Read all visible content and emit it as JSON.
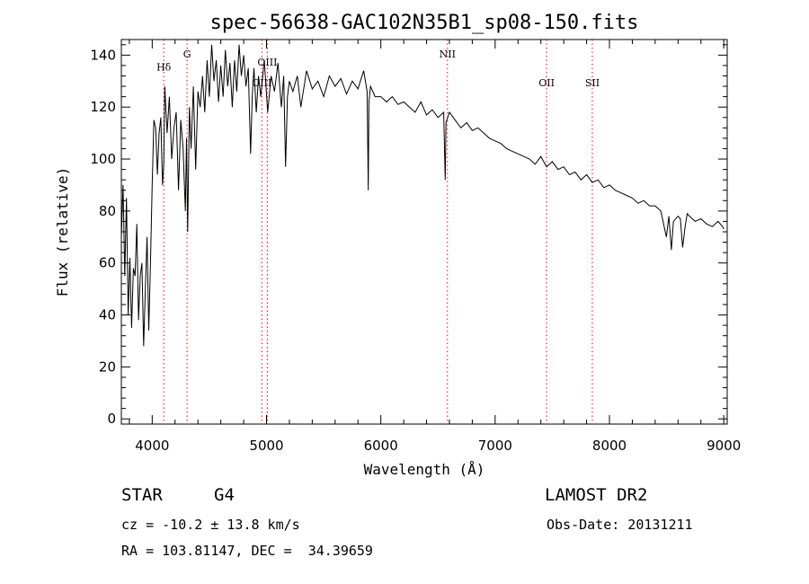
{
  "chart_data": {
    "type": "line",
    "title": "spec-56638-GAC102N35B1_sp08-150.fits",
    "xlabel": "Wavelength (Å)",
    "ylabel": "Flux (relative)",
    "xlim": [
      3730,
      9030
    ],
    "ylim": [
      -2,
      146
    ],
    "x_ticks": [
      4000,
      5000,
      6000,
      7000,
      8000,
      9000
    ],
    "y_ticks": [
      0,
      20,
      40,
      60,
      80,
      100,
      120,
      140
    ],
    "grid": false,
    "series": [
      {
        "color": "#000000",
        "x": [
          3730,
          3745,
          3760,
          3775,
          3790,
          3805,
          3820,
          3835,
          3850,
          3865,
          3880,
          3895,
          3910,
          3925,
          3940,
          3955,
          3970,
          3985,
          4000,
          4015,
          4030,
          4045,
          4060,
          4075,
          4090,
          4101,
          4110,
          4130,
          4150,
          4170,
          4190,
          4210,
          4230,
          4250,
          4270,
          4290,
          4300,
          4310,
          4325,
          4340,
          4360,
          4380,
          4400,
          4420,
          4440,
          4460,
          4480,
          4500,
          4520,
          4540,
          4560,
          4580,
          4600,
          4620,
          4640,
          4660,
          4680,
          4700,
          4720,
          4740,
          4760,
          4780,
          4800,
          4820,
          4840,
          4861,
          4875,
          4890,
          4910,
          4930,
          4950,
          4980,
          5010,
          5040,
          5070,
          5100,
          5130,
          5150,
          5167,
          5183,
          5200,
          5230,
          5270,
          5300,
          5350,
          5400,
          5450,
          5500,
          5550,
          5600,
          5650,
          5700,
          5750,
          5800,
          5850,
          5880,
          5890,
          5896,
          5910,
          5950,
          6000,
          6050,
          6100,
          6150,
          6200,
          6250,
          6300,
          6350,
          6400,
          6450,
          6500,
          6550,
          6563,
          6570,
          6600,
          6650,
          6700,
          6750,
          6800,
          6850,
          6900,
          6950,
          7000,
          7050,
          7100,
          7150,
          7200,
          7250,
          7300,
          7350,
          7400,
          7450,
          7500,
          7550,
          7600,
          7650,
          7700,
          7750,
          7800,
          7850,
          7900,
          7950,
          8000,
          8050,
          8100,
          8150,
          8200,
          8250,
          8300,
          8350,
          8400,
          8450,
          8498,
          8520,
          8542,
          8560,
          8600,
          8620,
          8640,
          8662,
          8680,
          8700,
          8750,
          8800,
          8850,
          8900,
          8950,
          8990,
          9000
        ],
        "y": [
          70,
          90,
          55,
          85,
          40,
          62,
          35,
          58,
          55,
          75,
          38,
          55,
          60,
          28,
          50,
          70,
          34,
          60,
          90,
          115,
          112,
          94,
          110,
          116,
          90,
          98,
          128,
          110,
          124,
          100,
          112,
          118,
          88,
          115,
          104,
          80,
          108,
          72,
          120,
          104,
          128,
          96,
          126,
          120,
          132,
          118,
          138,
          124,
          144,
          130,
          138,
          122,
          136,
          124,
          142,
          128,
          137,
          120,
          138,
          126,
          144,
          132,
          140,
          128,
          135,
          102,
          124,
          135,
          118,
          132,
          124,
          138,
          118,
          132,
          126,
          137,
          120,
          132,
          97,
          124,
          130,
          126,
          132,
          120,
          134,
          127,
          130,
          124,
          132,
          128,
          131,
          125,
          130,
          127,
          134,
          126,
          88,
          122,
          128,
          124,
          124,
          122,
          124,
          121,
          122,
          120,
          118,
          122,
          117,
          119,
          116,
          118,
          92,
          114,
          118,
          115,
          112,
          114,
          111,
          112,
          110,
          108,
          107,
          106,
          104,
          103,
          102,
          101,
          100,
          98,
          101,
          97,
          99,
          96,
          97,
          94,
          95,
          92,
          94,
          91,
          92,
          89,
          90,
          88,
          87,
          86,
          85,
          83,
          84,
          82,
          82,
          80,
          70,
          78,
          65,
          76,
          78,
          77,
          66,
          74,
          79,
          78,
          76,
          77,
          75,
          74,
          76,
          74,
          73
        ]
      }
    ],
    "line_marks": [
      {
        "label": "Hδ",
        "x": 4101,
        "label_y": 134
      },
      {
        "label": "G",
        "x": 4305,
        "label_y": 139
      },
      {
        "label": "OIII",
        "x": 4959,
        "label_y": 128
      },
      {
        "label": "OIII",
        "x": 5007,
        "label_y": 136
      },
      {
        "label": "NII",
        "x": 6583,
        "label_y": 139
      },
      {
        "label": "OII",
        "x": 7450,
        "label_y": 128
      },
      {
        "label": "SII",
        "x": 7850,
        "label_y": 128
      }
    ],
    "mark_color": "#ff0000"
  },
  "info": {
    "object_class": "STAR",
    "subclass": "G4",
    "survey": "LAMOST DR2",
    "velocity": "cz = -10.2 ± 13.8 km/s",
    "obs_date": "Obs-Date: 20131211",
    "coords": "RA = 103.81147, DEC =  34.39659"
  }
}
